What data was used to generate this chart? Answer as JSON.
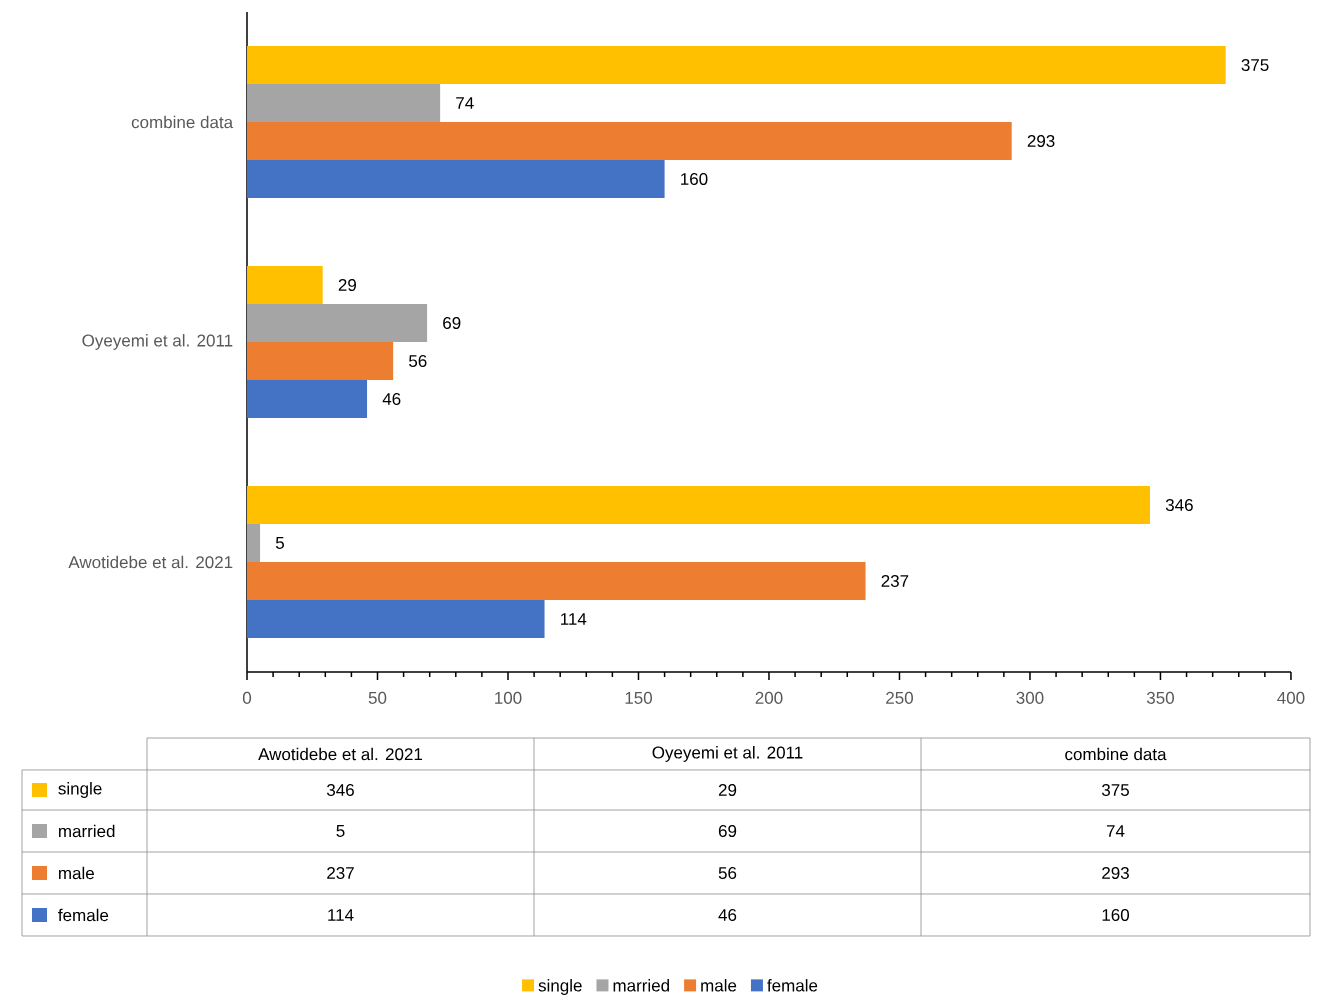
{
  "chart_data": [
    {
      "type": "bar",
      "orientation": "horizontal",
      "categories": [
        "combine data",
        "Oyeyemi et al. 2011",
        "Awotidebe et al. 2021"
      ],
      "series": [
        {
          "name": "single",
          "color": "#ffc000",
          "values": [
            375,
            29,
            346
          ]
        },
        {
          "name": "married",
          "color": "#a5a5a5",
          "values": [
            74,
            69,
            5
          ]
        },
        {
          "name": "male",
          "color": "#ed7d31",
          "values": [
            293,
            56,
            237
          ]
        },
        {
          "name": "female",
          "color": "#4472c4",
          "values": [
            160,
            46,
            114
          ]
        }
      ],
      "xlim": [
        0,
        400
      ],
      "xticks": [
        0,
        50,
        100,
        150,
        200,
        250,
        300,
        350,
        400
      ],
      "data_labels": true,
      "legend": "bottom"
    },
    {
      "type": "other",
      "categories": [
        "Awotidebe et al. 2021",
        "Oyeyemi et al. 2011",
        "combine data"
      ],
      "series": [
        {
          "name": "single",
          "color": "#ffc000",
          "values": [
            346,
            29,
            375
          ],
          "value_labels": [
            "346",
            "29",
            "375"
          ]
        },
        {
          "name": "married",
          "color": "#a5a5a5",
          "values": [
            5,
            69,
            74
          ],
          "value_labels": [
            "5",
            "69",
            "74"
          ]
        },
        {
          "name": "male",
          "color": "#ed7d31",
          "values": [
            237,
            56,
            293
          ],
          "value_labels": [
            "237",
            "56",
            "293"
          ]
        },
        {
          "name": "female",
          "color": "#4472c4",
          "values": [
            114,
            46,
            160
          ],
          "value_labels": [
            "114",
            "46",
            "160"
          ]
        }
      ]
    }
  ]
}
